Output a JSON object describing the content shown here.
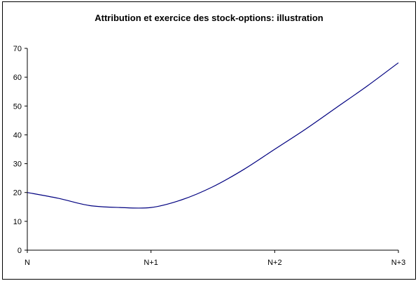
{
  "chart_data": {
    "type": "line",
    "title": "Attribution et exercice des stock-options: illustration",
    "xlabel": "",
    "ylabel": "",
    "categories": [
      "N",
      "N+1",
      "N+2",
      "N+3"
    ],
    "x": [
      0,
      0.25,
      0.5,
      0.75,
      1.0,
      1.25,
      1.5,
      1.75,
      2.0,
      2.25,
      2.5,
      2.75,
      3.0
    ],
    "series": [
      {
        "values": [
          20,
          18,
          15.5,
          14.8,
          14.8,
          17.5,
          22,
          28,
          35,
          42,
          49.5,
          57,
          65
        ],
        "color": "#000080"
      }
    ],
    "ylim": [
      0,
      70
    ],
    "yticks": [
      0,
      10,
      20,
      30,
      40,
      50,
      60,
      70
    ],
    "xlim": [
      0,
      3
    ],
    "grid": false,
    "legend": "none"
  }
}
